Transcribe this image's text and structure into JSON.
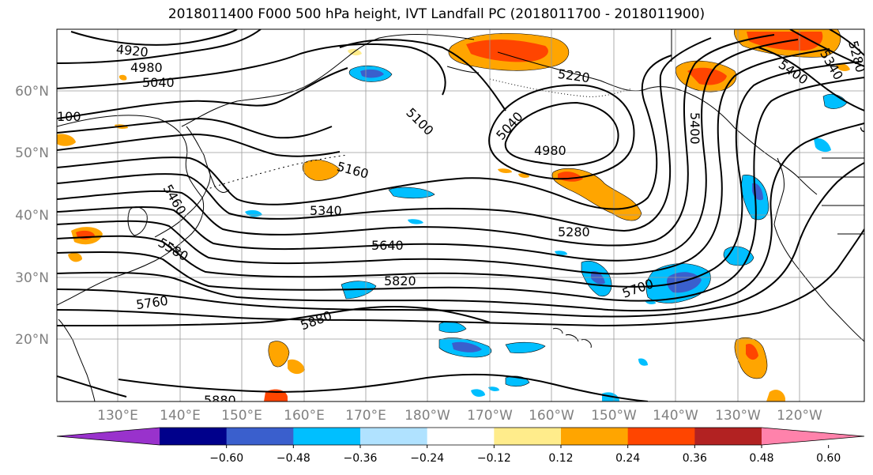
{
  "title": "2018011400 F000 500 hPa height, IVT Landfall PC (2018011700 - 2018011900)",
  "lat_labels": [
    "60°N",
    "50°N",
    "40°N",
    "30°N",
    "20°N"
  ],
  "lon_labels": [
    "130°E",
    "140°E",
    "150°E",
    "160°E",
    "170°E",
    "180°W",
    "170°W",
    "160°W",
    "150°W",
    "140°W",
    "130°W",
    "120°W"
  ],
  "contour_labels": [
    "4920",
    "4980",
    "5040",
    "100",
    "5100",
    "5040",
    "5220",
    "4980",
    "5400",
    "5400",
    "5340",
    "5280",
    "5",
    "5160",
    "5340",
    "5460",
    "5640",
    "5280",
    "5580",
    "5820",
    "5700",
    "5760",
    "5880",
    "5880"
  ],
  "colorbar": {
    "colors": [
      "#9932cc",
      "#00008b",
      "#3a5fcd",
      "#00bfff",
      "#b0e2ff",
      "#ffffff",
      "#ffec8b",
      "#ffa500",
      "#ff4500",
      "#b22222",
      "#ff82ab"
    ],
    "tick_labels": [
      "−0.60",
      "−0.48",
      "−0.36",
      "−0.24",
      "−0.12",
      "0.12",
      "0.24",
      "0.36",
      "0.48",
      "0.60"
    ]
  }
}
